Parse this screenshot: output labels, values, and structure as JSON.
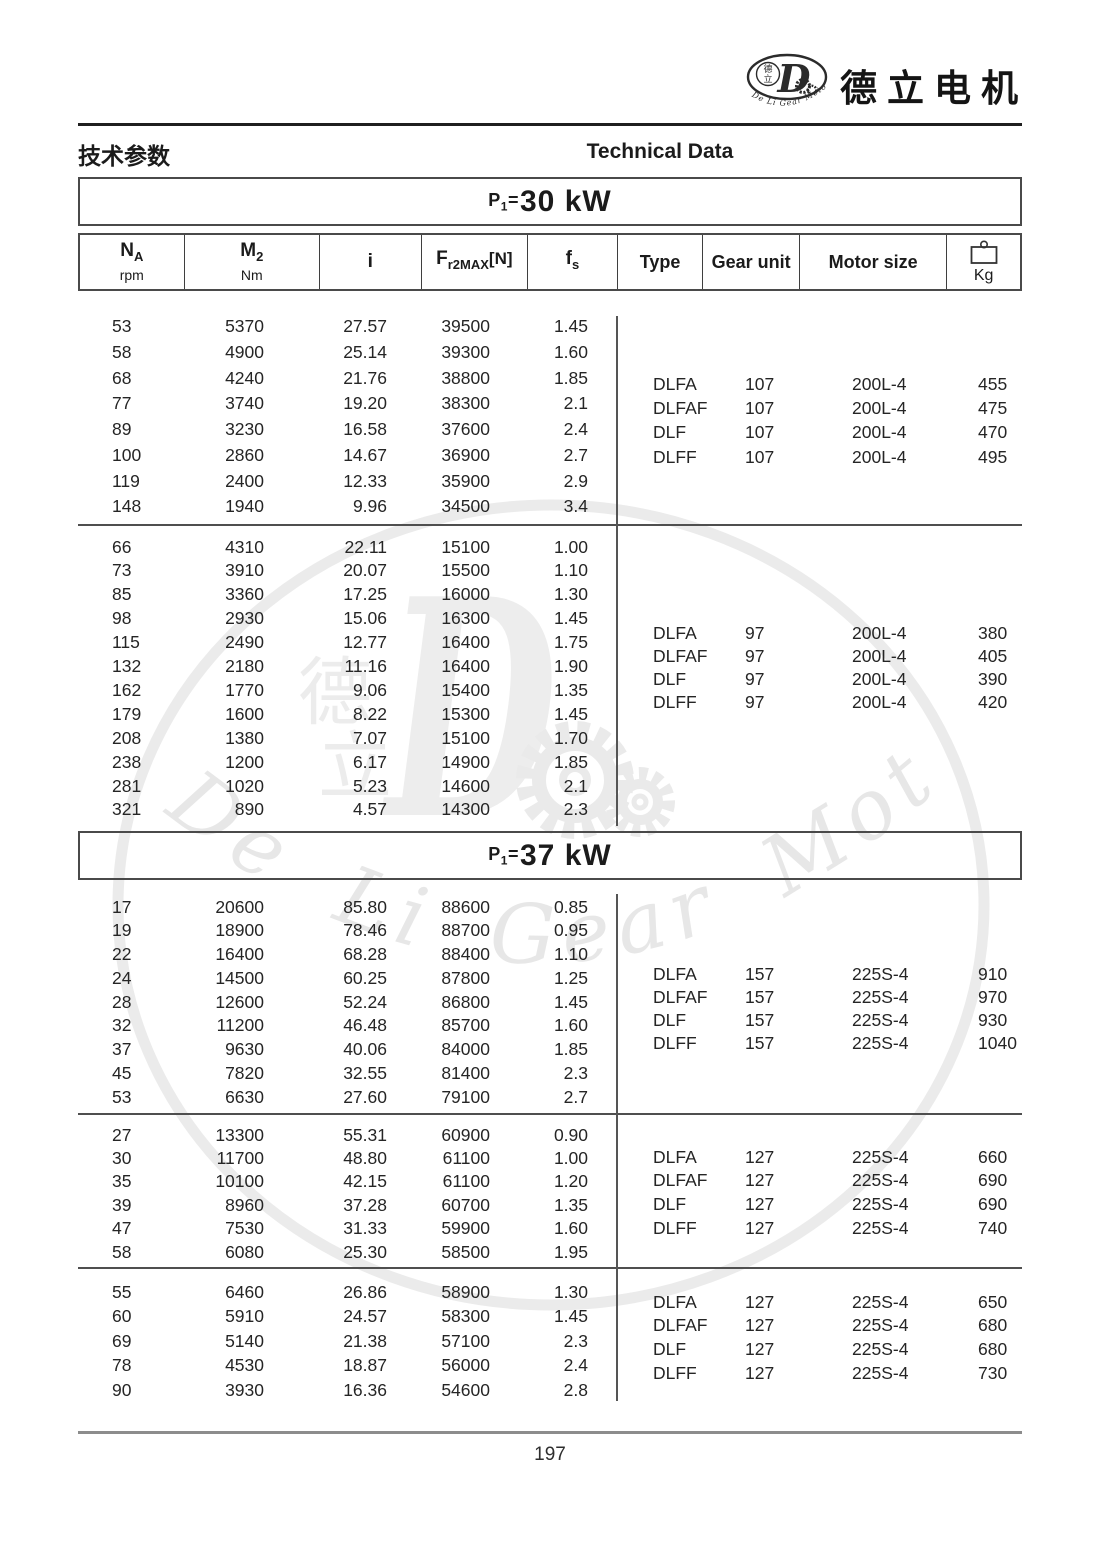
{
  "brand": {
    "name": "德立电机",
    "seal_top": "德",
    "seal_bottom": "立",
    "logo_letter": "D",
    "arc_text": "De Li Gear Motor"
  },
  "header": {
    "title_cn": "技术参数",
    "title_en": "Technical Data"
  },
  "table": {
    "columns": [
      {
        "base": "N",
        "sub": "A",
        "unit": "rpm"
      },
      {
        "base": "M",
        "sub": "2",
        "unit": "Nm"
      },
      {
        "base": "i"
      },
      {
        "base": "F",
        "sub": "r2MAX",
        "after": "[N]"
      },
      {
        "base": "f",
        "sub": "s"
      },
      {
        "label": "Type"
      },
      {
        "label": "Gear unit"
      },
      {
        "label": "Motor size"
      },
      {
        "icon": "kg-weight-icon",
        "label": "Kg"
      }
    ]
  },
  "sections": [
    {
      "title": {
        "prefix": "P",
        "sub": "1",
        "equals": "=",
        "value": "30 kW"
      },
      "groups": [
        {
          "rows": [
            [
              "53",
              "5370",
              "27.57",
              "39500",
              "1.45"
            ],
            [
              "58",
              "4900",
              "25.14",
              "39300",
              "1.60"
            ],
            [
              "68",
              "4240",
              "21.76",
              "38800",
              "1.85"
            ],
            [
              "77",
              "3740",
              "19.20",
              "38300",
              "2.1"
            ],
            [
              "89",
              "3230",
              "16.58",
              "37600",
              "2.4"
            ],
            [
              "100",
              "2860",
              "14.67",
              "36900",
              "2.7"
            ],
            [
              "119",
              "2400",
              "12.33",
              "35900",
              "2.9"
            ],
            [
              "148",
              "1940",
              "9.96",
              "34500",
              "3.4"
            ]
          ],
          "variants": [
            [
              "DLFA",
              "107",
              "200L-4",
              "455"
            ],
            [
              "DLFAF",
              "107",
              "200L-4",
              "475"
            ],
            [
              "DLF",
              "107",
              "200L-4",
              "470"
            ],
            [
              "DLFF",
              "107",
              "200L-4",
              "495"
            ]
          ]
        },
        {
          "rows": [
            [
              "66",
              "4310",
              "22.11",
              "15100",
              "1.00"
            ],
            [
              "73",
              "3910",
              "20.07",
              "15500",
              "1.10"
            ],
            [
              "85",
              "3360",
              "17.25",
              "16000",
              "1.30"
            ],
            [
              "98",
              "2930",
              "15.06",
              "16300",
              "1.45"
            ],
            [
              "115",
              "2490",
              "12.77",
              "16400",
              "1.75"
            ],
            [
              "132",
              "2180",
              "11.16",
              "16400",
              "1.90"
            ],
            [
              "162",
              "1770",
              "9.06",
              "15400",
              "1.35"
            ],
            [
              "179",
              "1600",
              "8.22",
              "15300",
              "1.45"
            ],
            [
              "208",
              "1380",
              "7.07",
              "15100",
              "1.70"
            ],
            [
              "238",
              "1200",
              "6.17",
              "14900",
              "1.85"
            ],
            [
              "281",
              "1020",
              "5.23",
              "14600",
              "2.1"
            ],
            [
              "321",
              "890",
              "4.57",
              "14300",
              "2.3"
            ]
          ],
          "variants": [
            [
              "DLFA",
              "97",
              "200L-4",
              "380"
            ],
            [
              "DLFAF",
              "97",
              "200L-4",
              "405"
            ],
            [
              "DLF",
              "97",
              "200L-4",
              "390"
            ],
            [
              "DLFF",
              "97",
              "200L-4",
              "420"
            ]
          ]
        }
      ]
    },
    {
      "title": {
        "prefix": "P",
        "sub": "1",
        "equals": "=",
        "value": "37 kW"
      },
      "groups": [
        {
          "rows": [
            [
              "17",
              "20600",
              "85.80",
              "88600",
              "0.85"
            ],
            [
              "19",
              "18900",
              "78.46",
              "88700",
              "0.95"
            ],
            [
              "22",
              "16400",
              "68.28",
              "88400",
              "1.10"
            ],
            [
              "24",
              "14500",
              "60.25",
              "87800",
              "1.25"
            ],
            [
              "28",
              "12600",
              "52.24",
              "86800",
              "1.45"
            ],
            [
              "32",
              "11200",
              "46.48",
              "85700",
              "1.60"
            ],
            [
              "37",
              "9630",
              "40.06",
              "84000",
              "1.85"
            ],
            [
              "45",
              "7820",
              "32.55",
              "81400",
              "2.3"
            ],
            [
              "53",
              "6630",
              "27.60",
              "79100",
              "2.7"
            ]
          ],
          "variants": [
            [
              "DLFA",
              "157",
              "225S-4",
              "910"
            ],
            [
              "DLFAF",
              "157",
              "225S-4",
              "970"
            ],
            [
              "DLF",
              "157",
              "225S-4",
              "930"
            ],
            [
              "DLFF",
              "157",
              "225S-4",
              "1040"
            ]
          ]
        },
        {
          "rows": [
            [
              "27",
              "13300",
              "55.31",
              "60900",
              "0.90"
            ],
            [
              "30",
              "11700",
              "48.80",
              "61100",
              "1.00"
            ],
            [
              "35",
              "10100",
              "42.15",
              "61100",
              "1.20"
            ],
            [
              "39",
              "8960",
              "37.28",
              "60700",
              "1.35"
            ],
            [
              "47",
              "7530",
              "31.33",
              "59900",
              "1.60"
            ],
            [
              "58",
              "6080",
              "25.30",
              "58500",
              "1.95"
            ]
          ],
          "variants": [
            [
              "DLFA",
              "127",
              "225S-4",
              "660"
            ],
            [
              "DLFAF",
              "127",
              "225S-4",
              "690"
            ],
            [
              "DLF",
              "127",
              "225S-4",
              "690"
            ],
            [
              "DLFF",
              "127",
              "225S-4",
              "740"
            ]
          ]
        },
        {
          "rows": [
            [
              "55",
              "6460",
              "26.86",
              "58900",
              "1.30"
            ],
            [
              "60",
              "5910",
              "24.57",
              "58300",
              "1.45"
            ],
            [
              "69",
              "5140",
              "21.38",
              "57100",
              "2.3"
            ],
            [
              "78",
              "4530",
              "18.87",
              "56000",
              "2.4"
            ],
            [
              "90",
              "3930",
              "16.36",
              "54600",
              "2.8"
            ]
          ],
          "variants": [
            [
              "DLFA",
              "127",
              "225S-4",
              "650"
            ],
            [
              "DLFAF",
              "127",
              "225S-4",
              "680"
            ],
            [
              "DLF",
              "127",
              "225S-4",
              "680"
            ],
            [
              "DLFF",
              "127",
              "225S-4",
              "730"
            ]
          ]
        }
      ]
    }
  ],
  "watermark": {
    "char_top": "德",
    "char_bottom": "立",
    "letter": "D",
    "arc_text": "De Li Gear Motor"
  },
  "footer": {
    "page_number": "197"
  }
}
